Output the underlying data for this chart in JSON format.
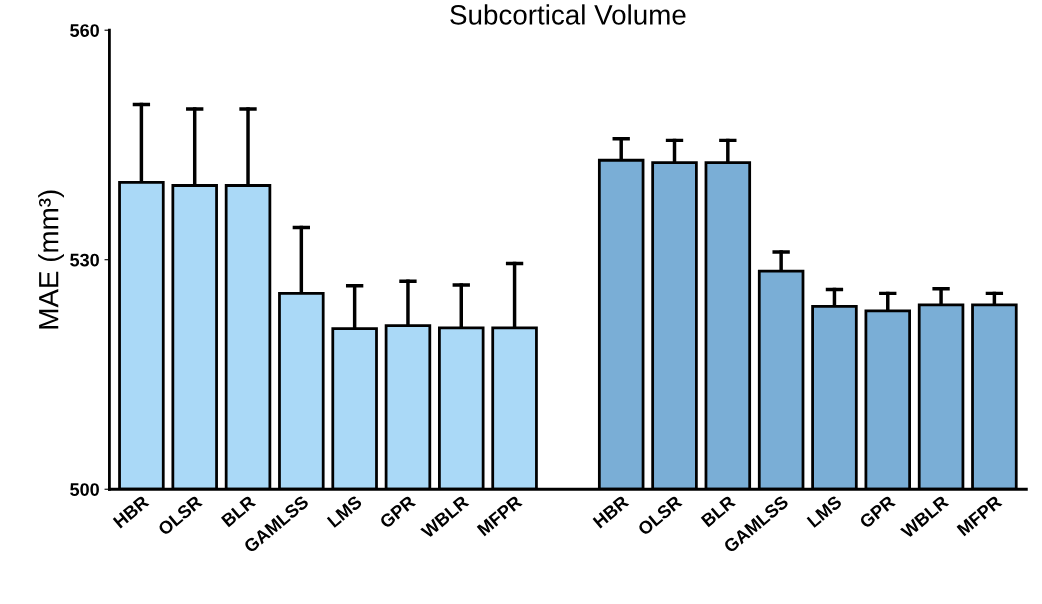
{
  "chart_data": {
    "type": "bar",
    "title": "Subcortical Volume",
    "ylabel": "MAE (mm³)",
    "categories": [
      "HBR",
      "OLSR",
      "BLR",
      "GAMLSS",
      "LMS",
      "GPR",
      "WBLR",
      "MFPR",
      null,
      "HBR",
      "OLSR",
      "BLR",
      "GAMLSS",
      "LMS",
      "GPR",
      "WBLR",
      "MFPR"
    ],
    "values": [
      540.1,
      539.7,
      539.7,
      525.6,
      521.0,
      521.4,
      521.1,
      521.1,
      null,
      543.0,
      542.7,
      542.7,
      528.5,
      523.9,
      523.3,
      524.1,
      524.1
    ],
    "errors": [
      [
        540.1,
        550.3
      ],
      [
        539.7,
        549.7
      ],
      [
        539.7,
        549.7
      ],
      [
        525.6,
        534.2
      ],
      [
        521.0,
        526.6
      ],
      [
        521.4,
        527.2
      ],
      [
        521.1,
        526.7
      ],
      [
        521.1,
        529.5
      ],
      null,
      [
        543.0,
        545.8
      ],
      [
        542.7,
        545.6
      ],
      [
        542.7,
        545.6
      ],
      [
        528.5,
        531.0
      ],
      [
        523.9,
        526.1
      ],
      [
        523.3,
        525.6
      ],
      [
        524.1,
        526.2
      ],
      [
        524.1,
        525.6
      ]
    ],
    "colors": [
      "#aad9f7",
      "#aad9f7",
      "#aad9f7",
      "#aad9f7",
      "#aad9f7",
      "#aad9f7",
      "#aad9f7",
      "#aad9f7",
      "#aad9f7",
      "#7aaed6",
      "#7aaed6",
      "#7aaed6",
      "#7aaed6",
      "#7aaed6",
      "#7aaed6",
      "#7aaed6",
      "#7aaed6"
    ],
    "ylim": [
      500,
      560
    ],
    "yticks": [
      500,
      530,
      560
    ],
    "grid": false,
    "legend": false
  }
}
